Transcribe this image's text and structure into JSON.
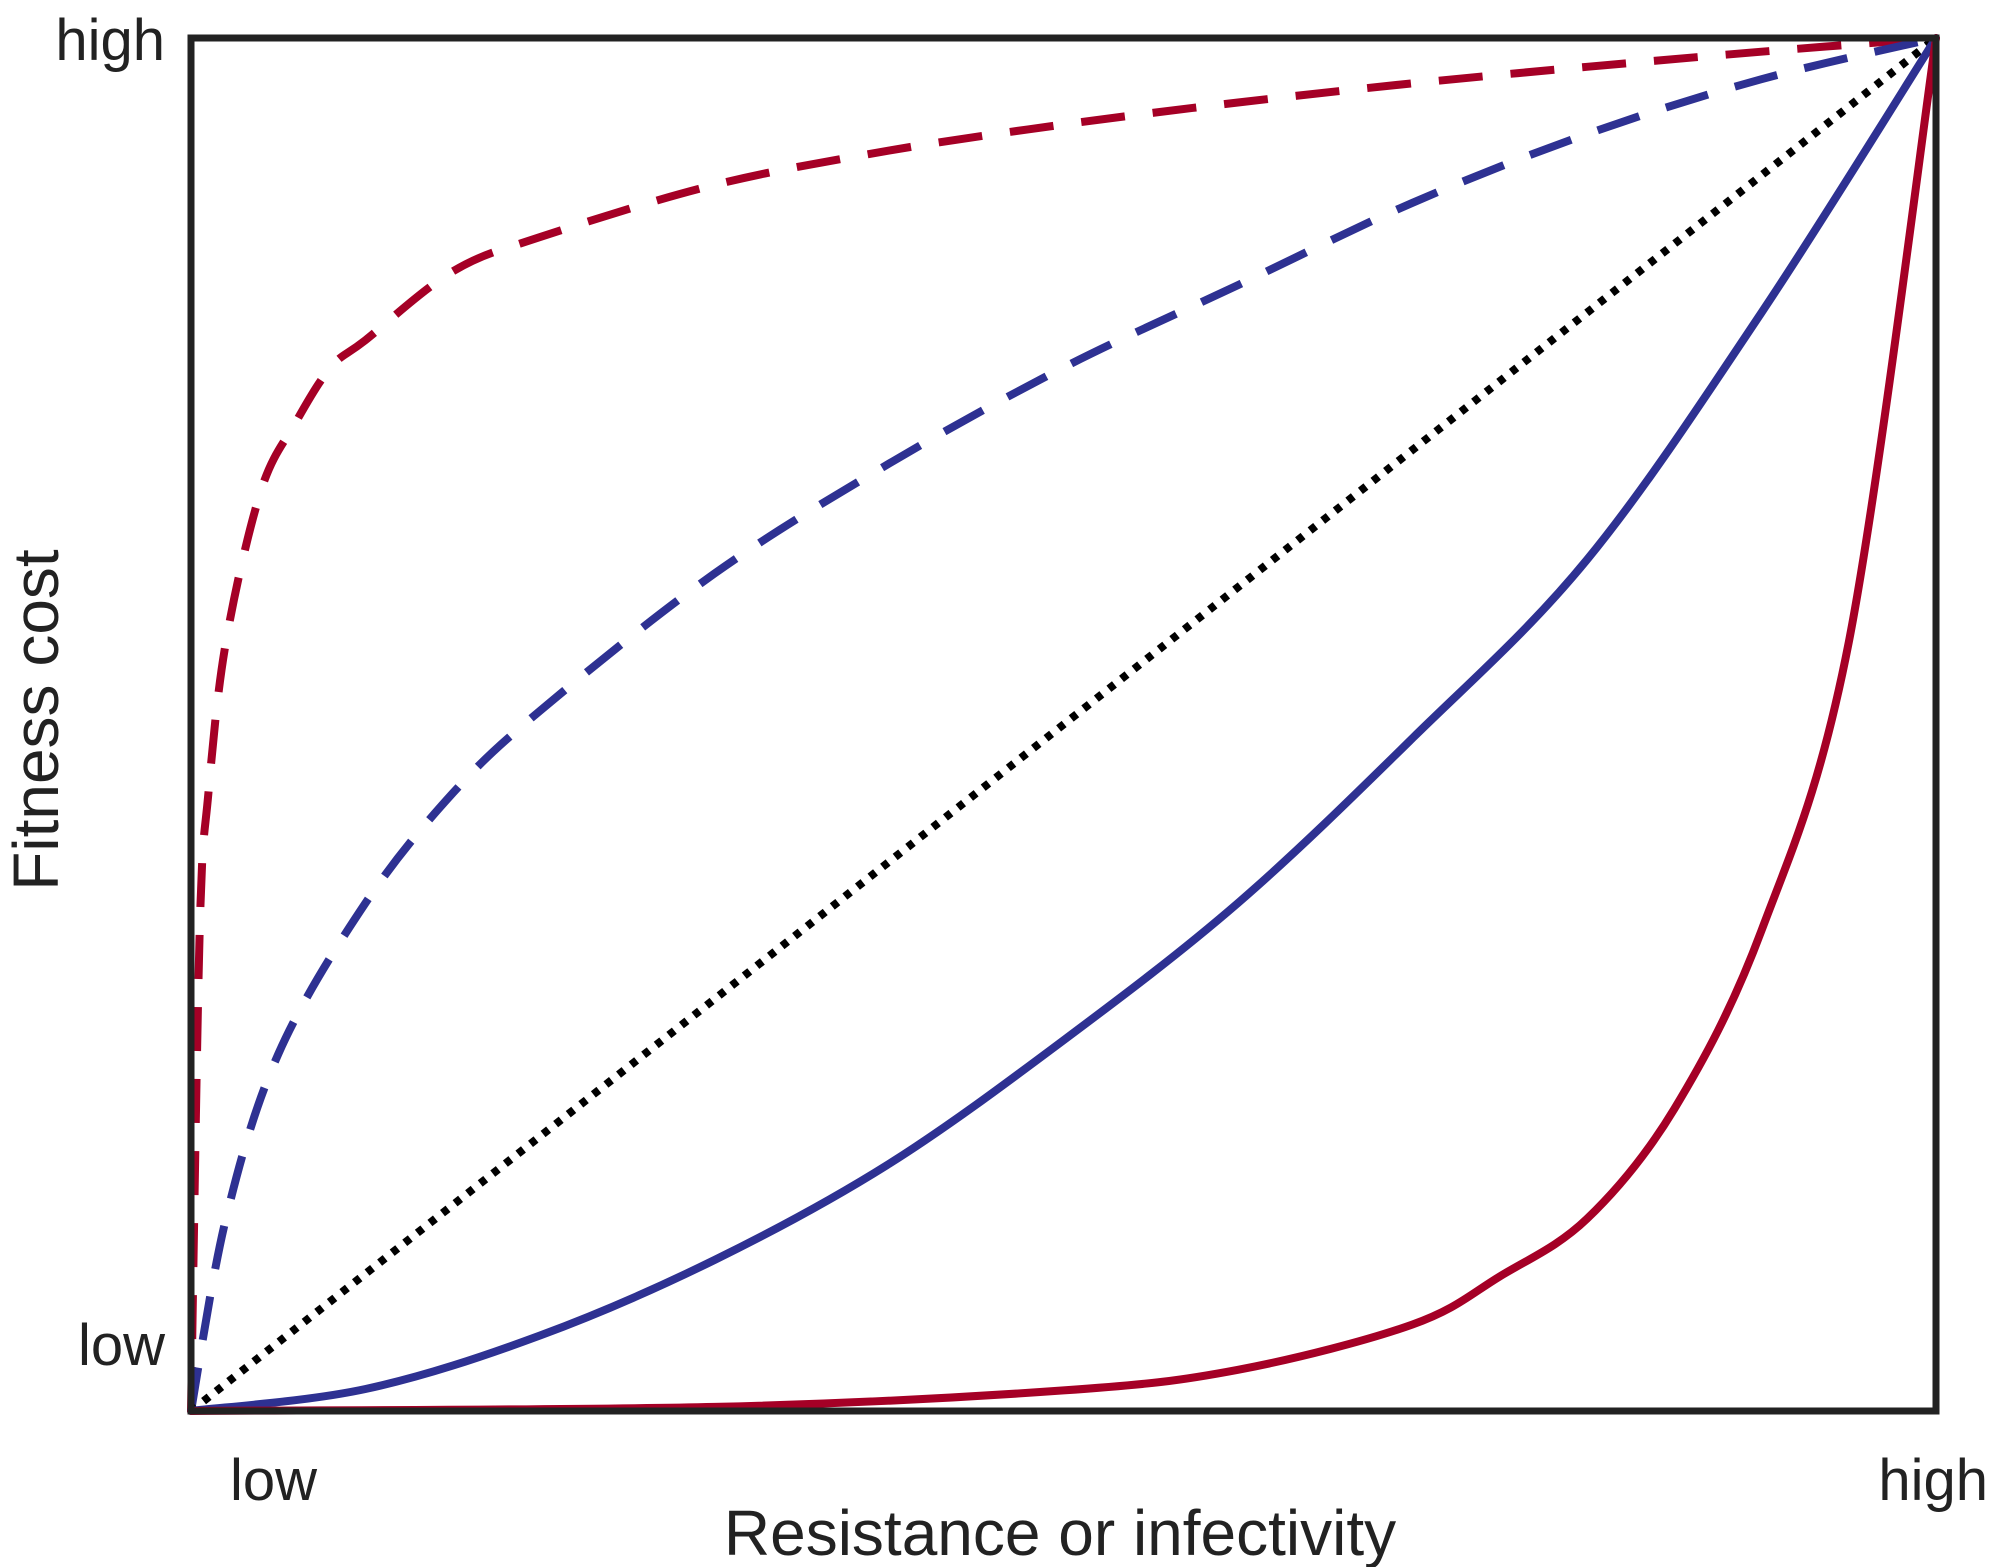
{
  "chart_data": {
    "type": "line",
    "title": "",
    "xlabel": "Resistance or infectivity",
    "ylabel": "Fitness cost",
    "xlim": [
      0,
      1
    ],
    "ylim": [
      0,
      1
    ],
    "x_tick_labels": [
      "low",
      "high"
    ],
    "y_tick_labels": [
      "low",
      "high"
    ],
    "grid": false,
    "legend": "none",
    "frame_color": "#222222",
    "series": [
      {
        "style": "dashed",
        "color": "#A50026",
        "x": [
          0,
          0.005,
          0.01,
          0.02,
          0.04,
          0.06,
          0.08,
          0.1,
          0.15,
          0.2,
          0.3,
          0.4,
          0.5,
          0.6,
          0.7,
          0.8,
          0.9,
          1.0
        ],
        "y": [
          0,
          0.35,
          0.45,
          0.56,
          0.67,
          0.72,
          0.76,
          0.78,
          0.83,
          0.855,
          0.893,
          0.918,
          0.937,
          0.953,
          0.967,
          0.979,
          0.99,
          1.0
        ]
      },
      {
        "style": "dashed",
        "color": "#2E3192",
        "x": [
          0,
          0.02,
          0.05,
          0.1,
          0.15,
          0.2,
          0.3,
          0.4,
          0.5,
          0.6,
          0.7,
          0.8,
          0.9,
          1.0
        ],
        "y": [
          0,
          0.14,
          0.26,
          0.37,
          0.45,
          0.51,
          0.61,
          0.69,
          0.76,
          0.82,
          0.88,
          0.93,
          0.97,
          1.0
        ]
      },
      {
        "style": "dotted",
        "color": "#000000",
        "x": [
          0,
          1
        ],
        "y": [
          0,
          1
        ]
      },
      {
        "style": "solid",
        "color": "#2E3192",
        "x": [
          0,
          0.1,
          0.2,
          0.3,
          0.4,
          0.5,
          0.6,
          0.7,
          0.8,
          0.9,
          1.0
        ],
        "y": [
          0,
          0.016,
          0.055,
          0.11,
          0.18,
          0.27,
          0.37,
          0.49,
          0.62,
          0.8,
          1.0
        ]
      },
      {
        "style": "solid",
        "color": "#A50026",
        "x": [
          0,
          0.3,
          0.5,
          0.6,
          0.7,
          0.75,
          0.8,
          0.85,
          0.9,
          0.95,
          1.0
        ],
        "y": [
          0,
          0.003,
          0.015,
          0.03,
          0.063,
          0.098,
          0.14,
          0.22,
          0.35,
          0.56,
          1.0
        ]
      }
    ]
  }
}
